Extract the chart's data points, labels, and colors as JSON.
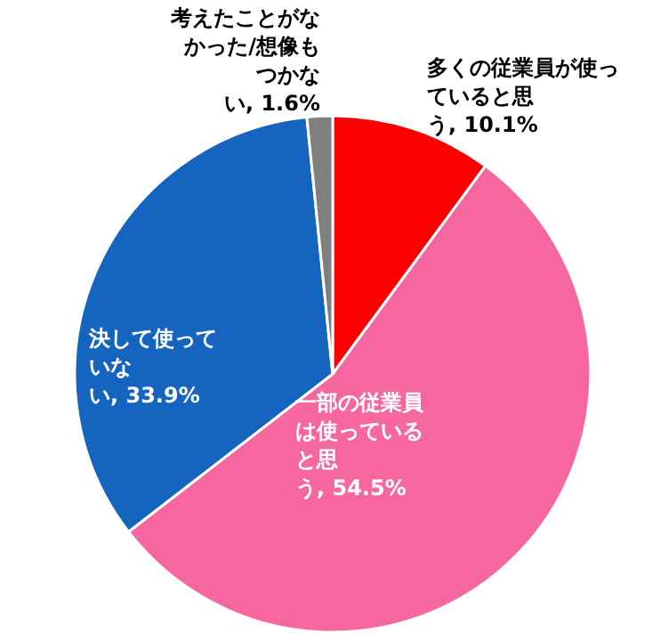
{
  "chart_data": {
    "type": "pie",
    "categories": [
      "多くの従業員が使っていると思う",
      "一部の従業員は使っていると思う",
      "決して使っていない",
      "考えたことがなかった/想像もつかない"
    ],
    "values": [
      10.1,
      54.5,
      33.9,
      1.6
    ],
    "value_labels": [
      ", 10.1%",
      ", 54.5%",
      ", 33.9%",
      ", 1.6%"
    ],
    "colors": [
      "#ff0000",
      "#f7679f",
      "#1565c0",
      "#7f7f7f"
    ]
  }
}
